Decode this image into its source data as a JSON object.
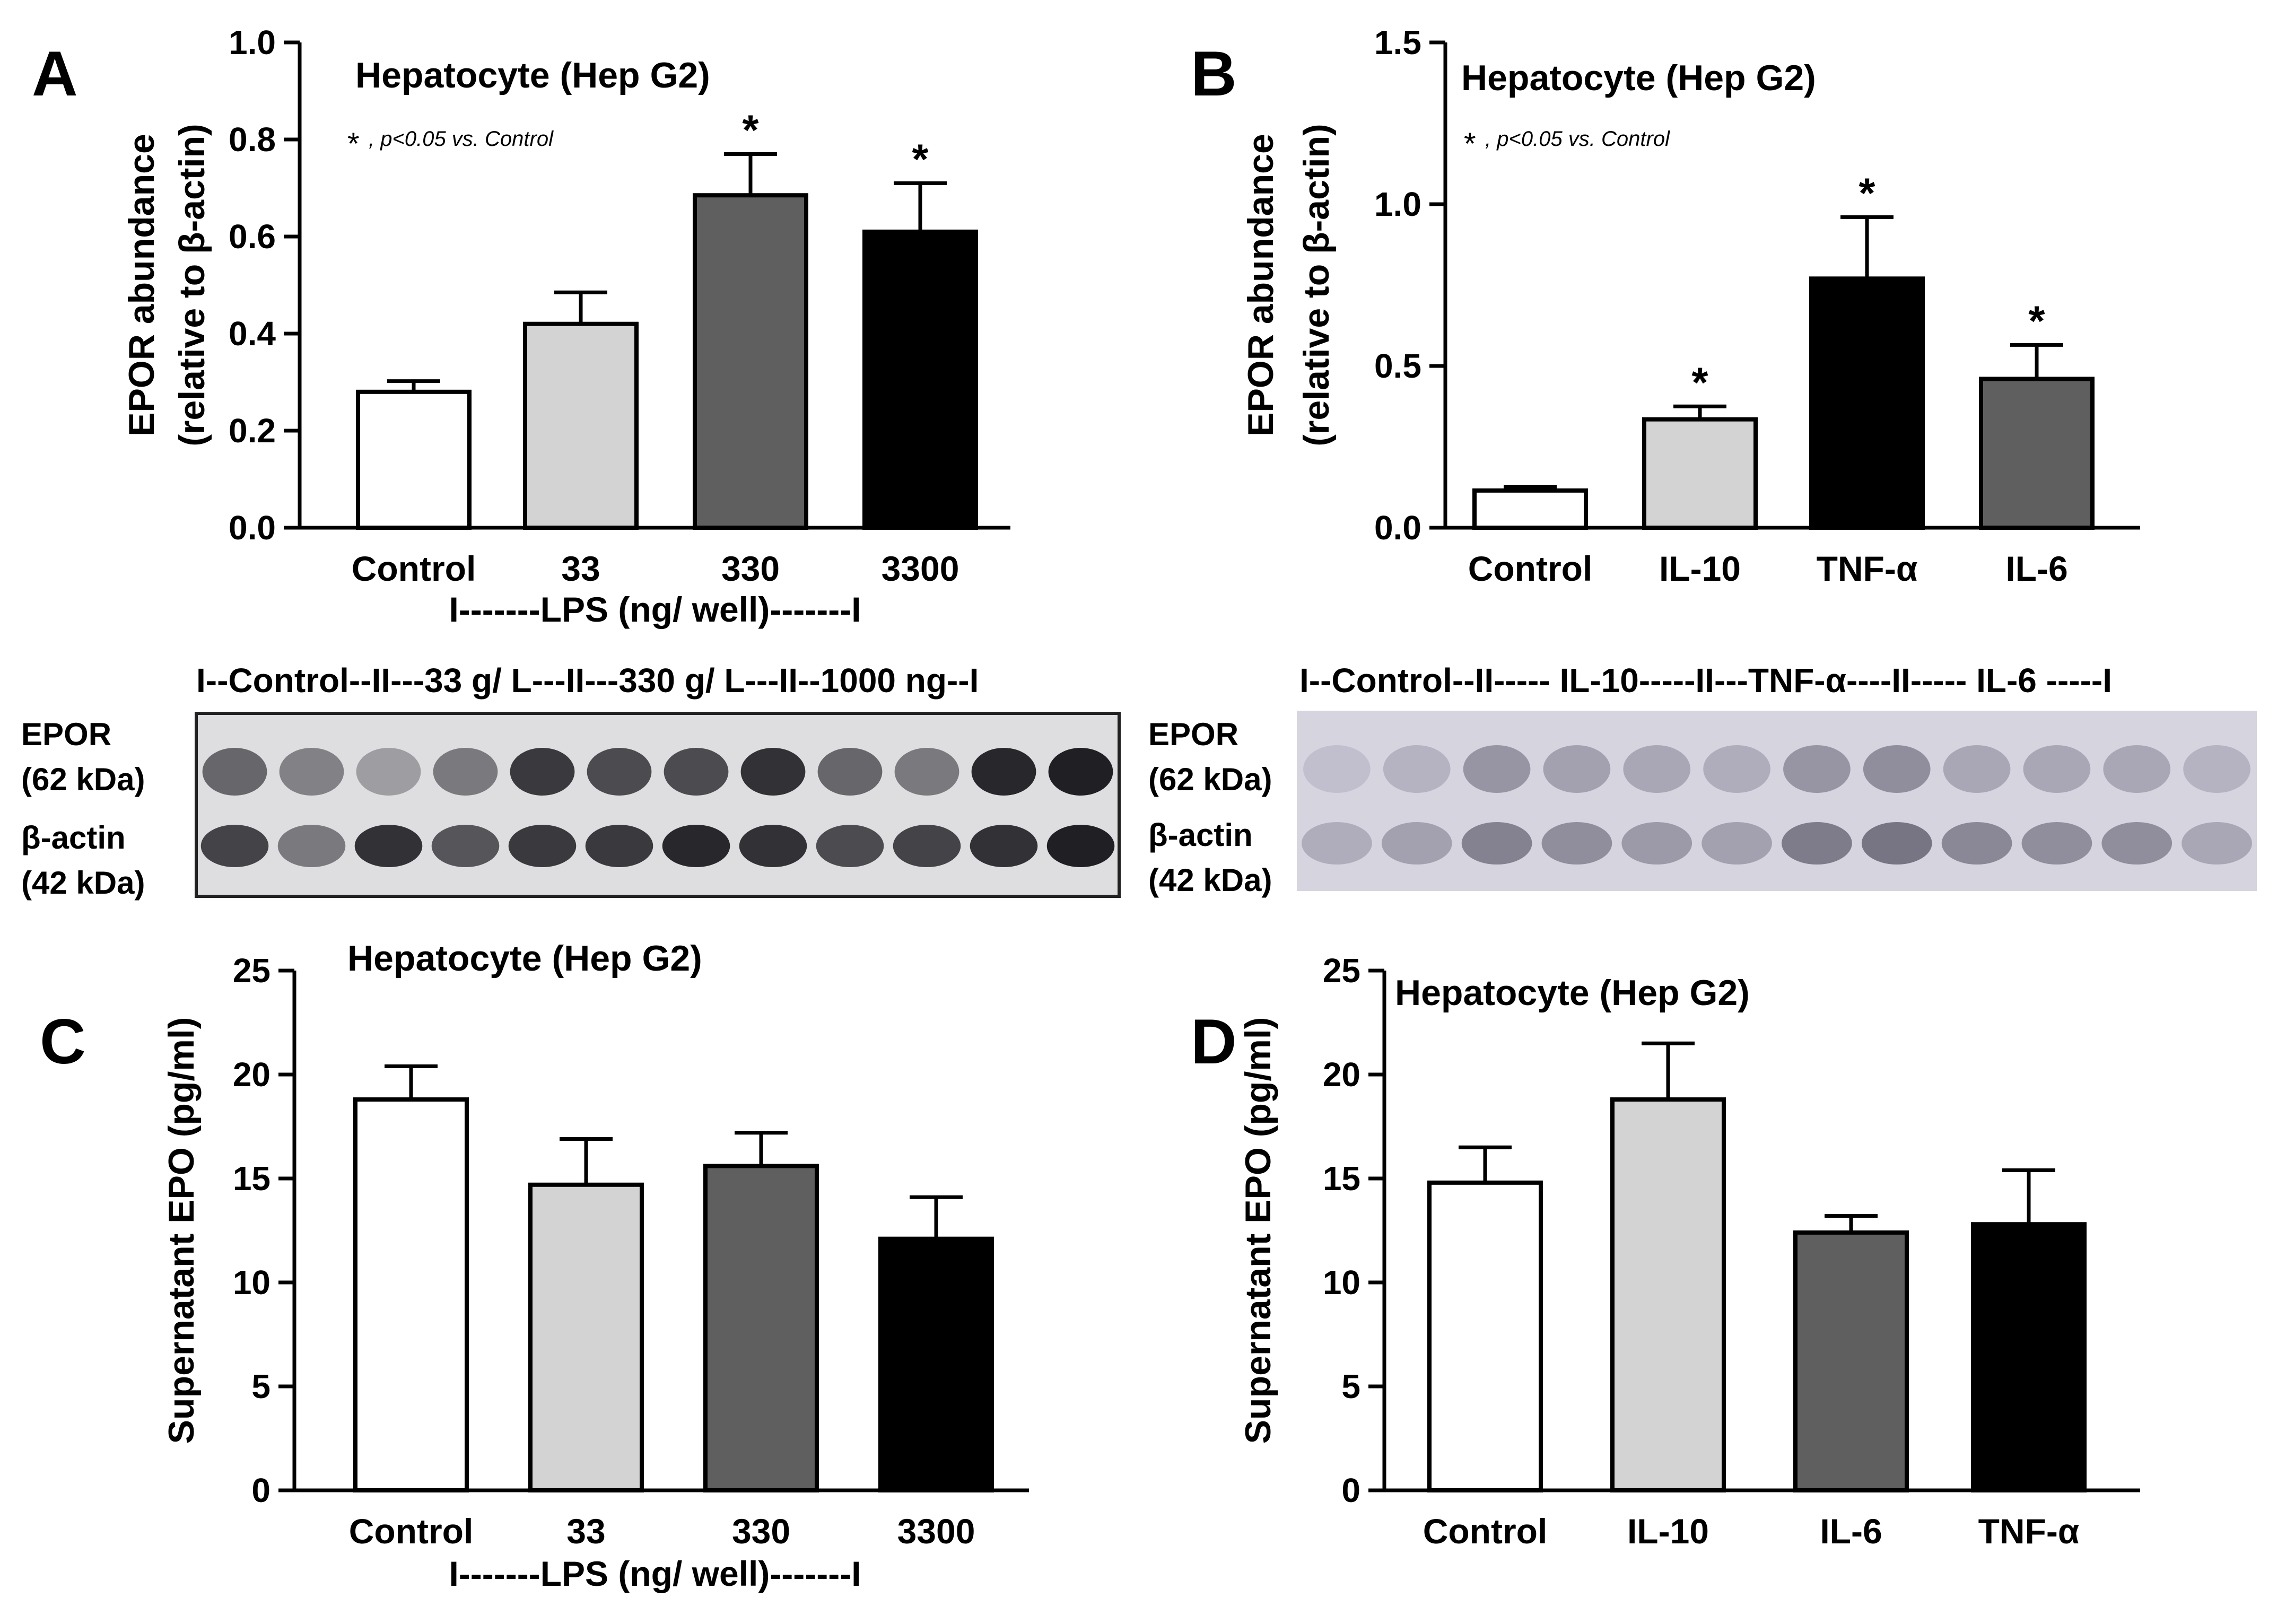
{
  "panel_letters": [
    "A",
    "B",
    "C",
    "D"
  ],
  "chart_data": [
    {
      "panel": "A",
      "type": "bar",
      "title": "Hepatocyte (Hep G2)",
      "annotation_mark": "*",
      "annotation_text": ", p<0.05 vs. Control",
      "ylabel_lines": [
        "EPOR abundance",
        "(relative to β-actin)"
      ],
      "xlabel": "I-------LPS (ng/ well)-------I",
      "categories": [
        "Control",
        "33",
        "330",
        "3300"
      ],
      "values": [
        0.28,
        0.42,
        0.685,
        0.61
      ],
      "errors": [
        0.022,
        0.065,
        0.085,
        0.1
      ],
      "significant": [
        false,
        false,
        true,
        true
      ],
      "fills": [
        "#ffffff",
        "#d3d3d3",
        "#5f5f5f",
        "#000000"
      ],
      "ylim": [
        0,
        1.0
      ],
      "yticks": [
        "0.0",
        "0.2",
        "0.4",
        "0.6",
        "0.8",
        "1.0"
      ],
      "legend": "none"
    },
    {
      "panel": "B",
      "type": "bar",
      "title": "Hepatocyte (Hep G2)",
      "annotation_mark": "*",
      "annotation_text": ", p<0.05 vs. Control",
      "ylabel_lines": [
        "EPOR abundance",
        "(relative to β-actin)"
      ],
      "xlabel": "",
      "categories": [
        "Control",
        "IL-10",
        "TNF-α",
        "IL-6"
      ],
      "values": [
        0.115,
        0.335,
        0.77,
        0.46
      ],
      "errors": [
        0.012,
        0.04,
        0.19,
        0.105
      ],
      "significant": [
        false,
        true,
        true,
        true
      ],
      "fills": [
        "#ffffff",
        "#d3d3d3",
        "#000000",
        "#5f5f5f"
      ],
      "ylim": [
        0,
        1.5
      ],
      "yticks": [
        "0.0",
        "0.5",
        "1.0",
        "1.5"
      ],
      "legend": "none"
    },
    {
      "panel": "C",
      "type": "bar",
      "title": "Hepatocyte (Hep G2)",
      "ylabel_lines": [
        "Supernatant EPO (pg/ml)"
      ],
      "xlabel": "I-------LPS (ng/ well)-------I",
      "categories": [
        "Control",
        "33",
        "330",
        "3300"
      ],
      "values": [
        18.8,
        14.7,
        15.6,
        12.1
      ],
      "errors": [
        1.6,
        2.2,
        1.6,
        2.0
      ],
      "significant": [
        false,
        false,
        false,
        false
      ],
      "fills": [
        "#ffffff",
        "#d3d3d3",
        "#5f5f5f",
        "#000000"
      ],
      "ylim": [
        0,
        25
      ],
      "yticks": [
        "0",
        "5",
        "10",
        "15",
        "20",
        "25"
      ],
      "legend": "none"
    },
    {
      "panel": "D",
      "type": "bar",
      "title": "Hepatocyte (Hep G2)",
      "ylabel_lines": [
        "Supernatant EPO (pg/ml)"
      ],
      "xlabel": "",
      "categories": [
        "Control",
        "IL-10",
        "IL-6",
        "TNF-α"
      ],
      "values": [
        14.8,
        18.8,
        12.4,
        12.8
      ],
      "errors": [
        1.7,
        2.7,
        0.8,
        2.6
      ],
      "significant": [
        false,
        false,
        false,
        false
      ],
      "fills": [
        "#ffffff",
        "#d3d3d3",
        "#5f5f5f",
        "#000000"
      ],
      "ylim": [
        0,
        25
      ],
      "yticks": [
        "0",
        "5",
        "10",
        "15",
        "20",
        "25"
      ],
      "legend": "none"
    }
  ],
  "blots": [
    {
      "panel": "A",
      "header": "I--Control--II---33 g/ L---II---330 g/ L---II--1000 ng--I",
      "label_epor": [
        "EPOR",
        "(62 kDa)"
      ],
      "label_actin": [
        "β-actin",
        "(42 kDa)"
      ],
      "lanes": 12,
      "epor_band_intensity": [
        0.55,
        0.4,
        0.25,
        0.45,
        0.8,
        0.7,
        0.7,
        0.85,
        0.55,
        0.45,
        0.9,
        0.95
      ],
      "actin_band_intensity": [
        0.75,
        0.45,
        0.85,
        0.65,
        0.8,
        0.8,
        0.9,
        0.85,
        0.7,
        0.75,
        0.85,
        0.95
      ],
      "background": "#ffffff"
    },
    {
      "panel": "B",
      "header": "I--Control--II----- IL-10-----II---TNF-α----II----- IL-6 -----I",
      "label_epor": [
        "EPOR",
        "(62 kDa)"
      ],
      "label_actin": [
        "β-actin",
        "(42 kDa)"
      ],
      "lanes": 12,
      "epor_band_intensity": [
        0.1,
        0.2,
        0.45,
        0.35,
        0.3,
        0.25,
        0.45,
        0.5,
        0.3,
        0.3,
        0.3,
        0.2
      ],
      "actin_band_intensity": [
        0.25,
        0.35,
        0.6,
        0.5,
        0.4,
        0.35,
        0.65,
        0.7,
        0.55,
        0.5,
        0.5,
        0.3
      ],
      "background": "#ffffff"
    }
  ]
}
